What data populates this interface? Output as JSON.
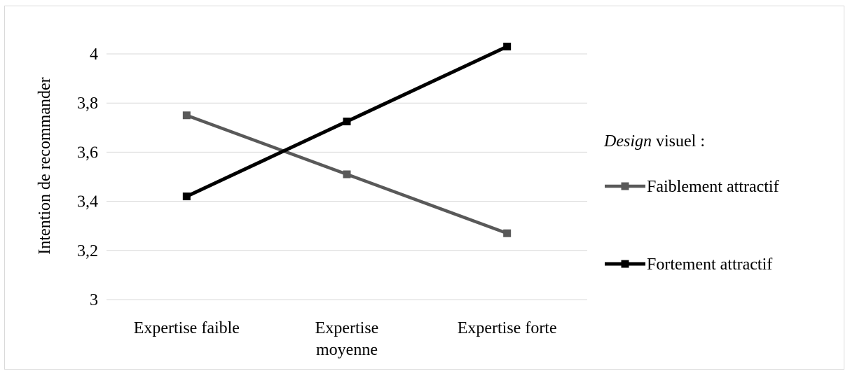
{
  "chart_data": {
    "type": "line",
    "categories": [
      [
        "Expertise faible"
      ],
      [
        "Expertise",
        "moyenne"
      ],
      [
        "Expertise forte"
      ]
    ],
    "ylabel": "Intention de recommander",
    "ylim": [
      3,
      4
    ],
    "yticks": [
      "3",
      "3,2",
      "3,4",
      "3,6",
      "3,8",
      "4"
    ],
    "ytick_values": [
      3,
      3.2,
      3.4,
      3.6,
      3.8,
      4
    ],
    "grid": true,
    "legend": {
      "title_italic": "Design",
      "title_rest": " visuel :",
      "placement": "right"
    },
    "series": [
      {
        "name": "Faiblement attractif",
        "values": [
          3.75,
          3.51,
          3.27
        ],
        "color": "#595959"
      },
      {
        "name": "Fortement attractif",
        "values": [
          3.42,
          3.725,
          4.03
        ],
        "color": "#000000"
      }
    ]
  }
}
